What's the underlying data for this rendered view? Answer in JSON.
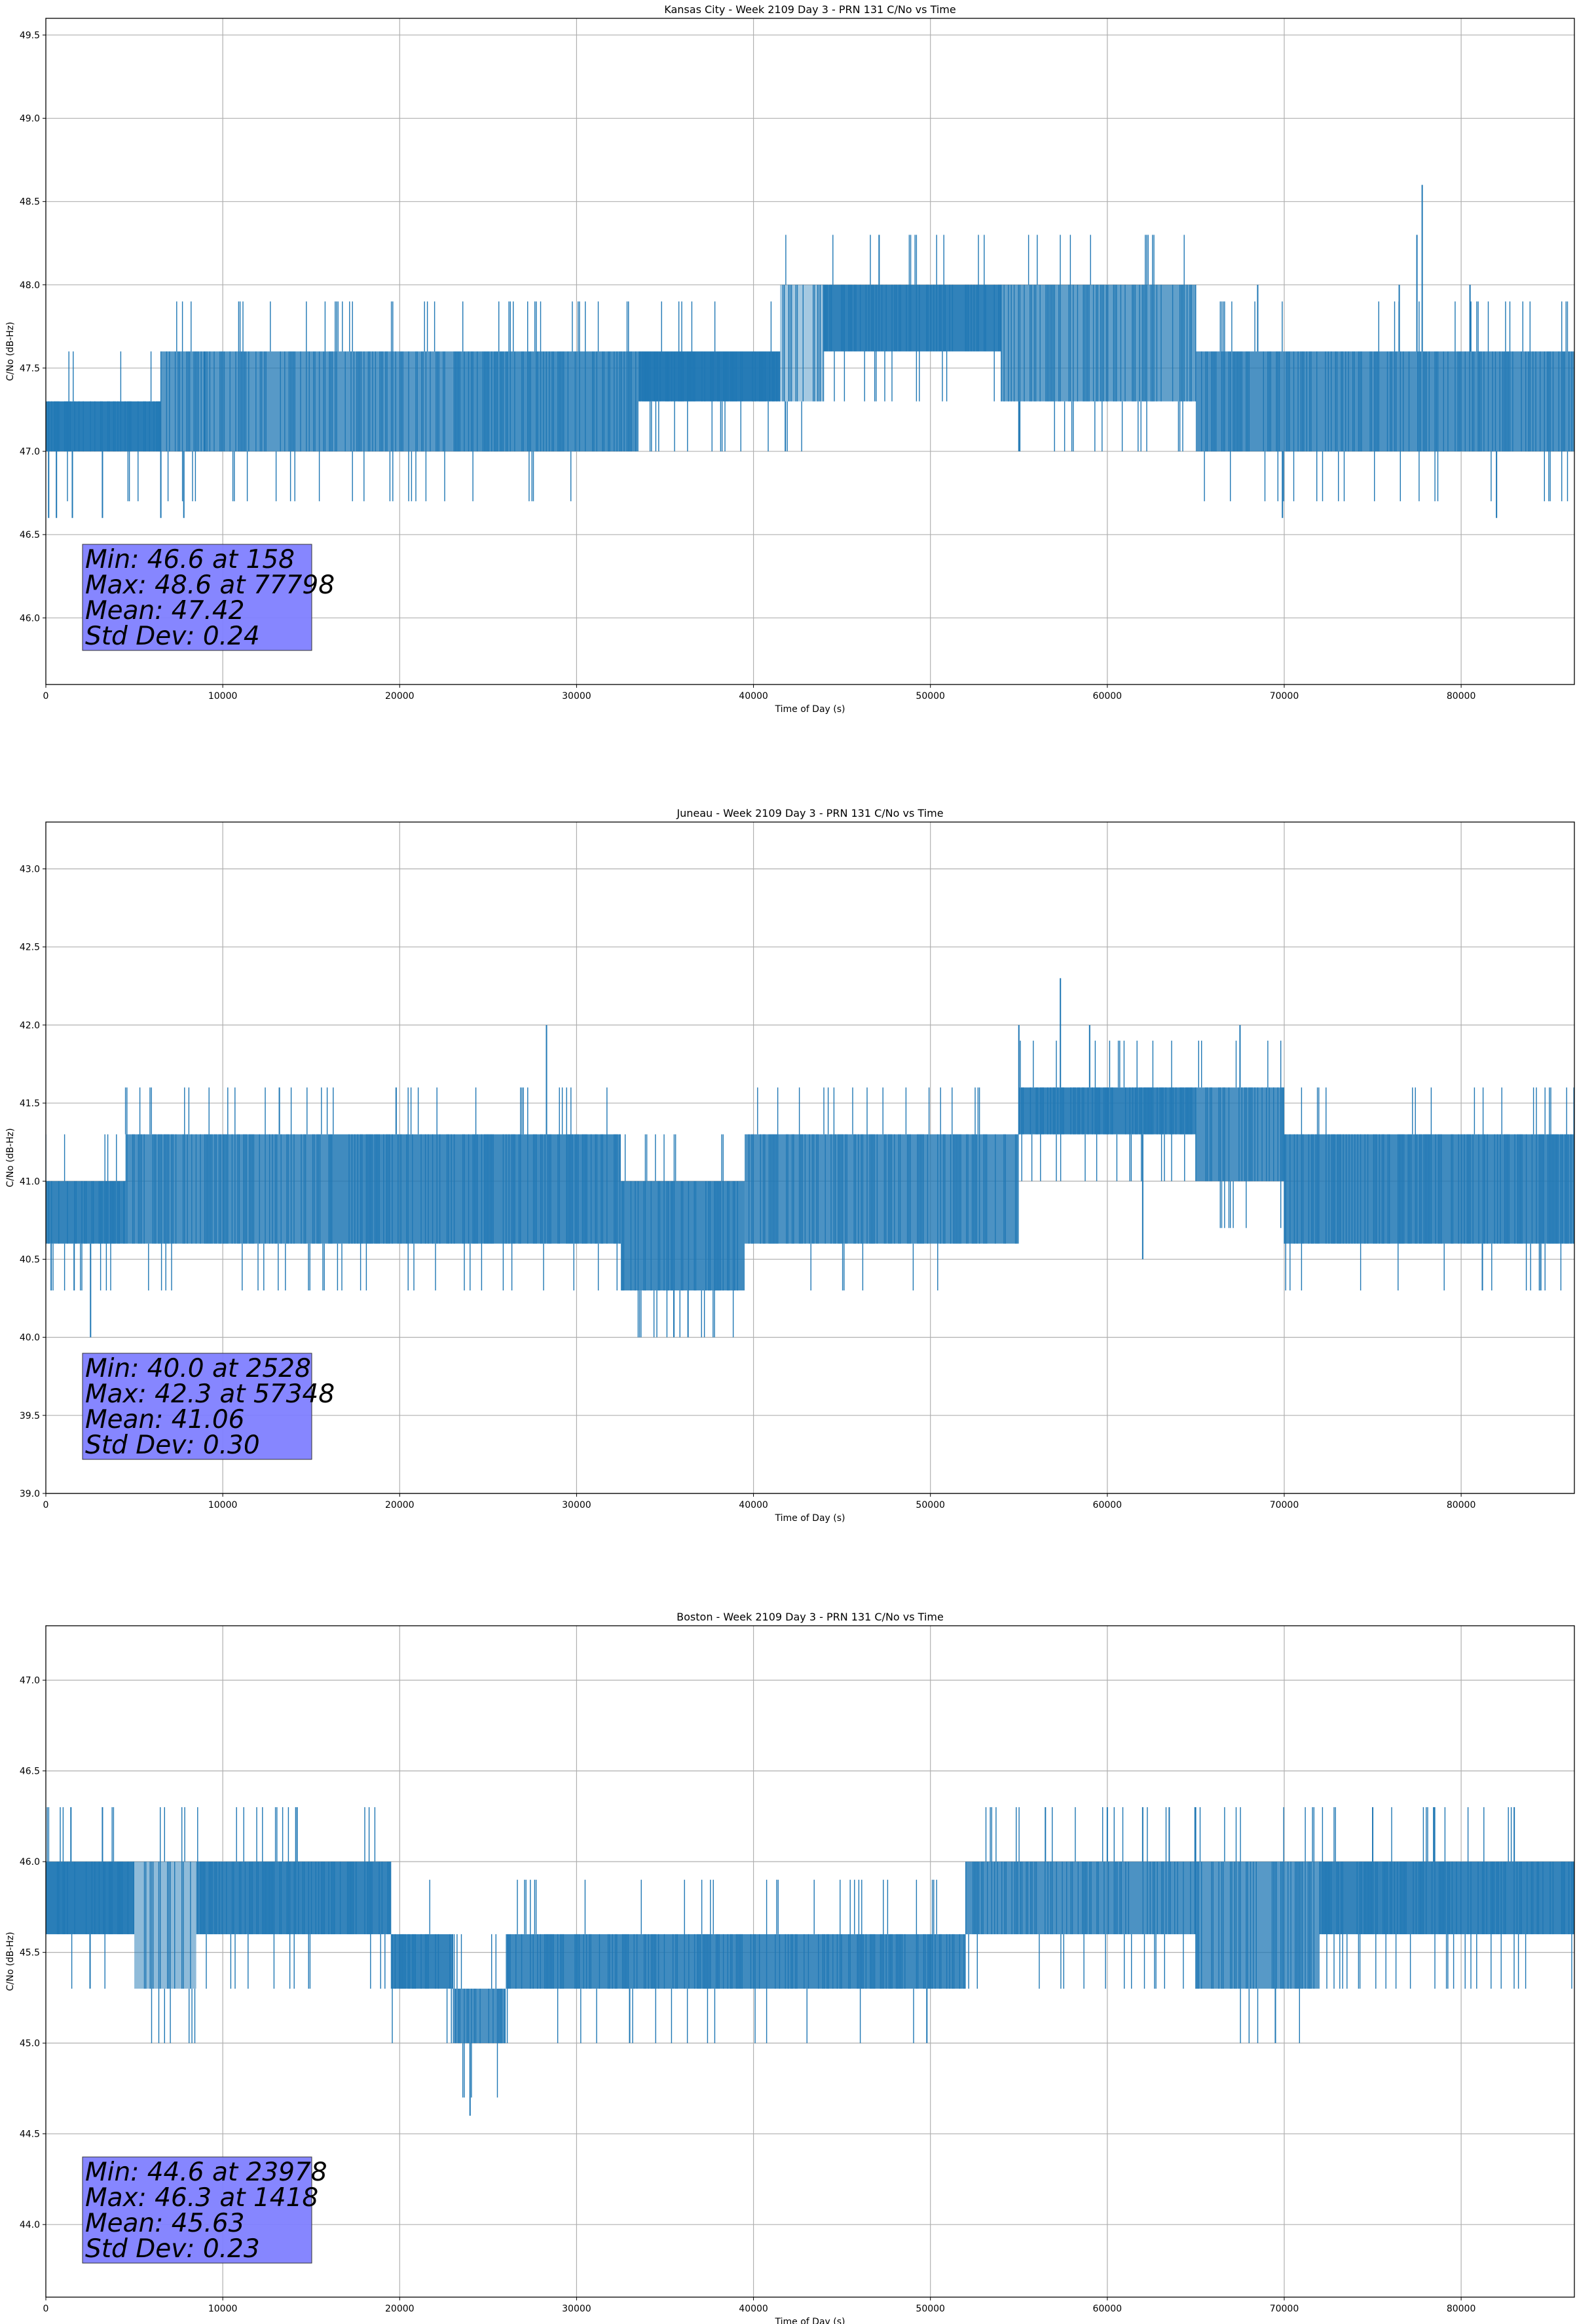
{
  "chart_data": [
    {
      "type": "line",
      "title": "Kansas City - Week 2109 Day 3 - PRN 131 C/No vs Time",
      "xlabel": "Time of Day (s)",
      "ylabel": "C/No (dB-Hz)",
      "xlim": [
        0,
        86400
      ],
      "ylim": [
        45.6,
        49.6
      ],
      "xticks": [
        0,
        10000,
        20000,
        30000,
        40000,
        50000,
        60000,
        70000,
        80000
      ],
      "yticks": [
        46.0,
        46.5,
        47.0,
        47.5,
        48.0,
        48.5,
        49.0,
        49.5
      ],
      "grid": true,
      "series_color": "#1f77b4",
      "series": [
        {
          "segments": [
            {
              "x": [
                0,
                6500
              ],
              "lo": 47.0,
              "hi": 47.3,
              "dense": 0.95
            },
            {
              "x": [
                6500,
                23000
              ],
              "lo": 47.0,
              "hi": 47.6,
              "dense": 0.75
            },
            {
              "x": [
                23000,
                33500
              ],
              "lo": 47.0,
              "hi": 47.6,
              "dense": 0.82
            },
            {
              "x": [
                33500,
                41500
              ],
              "lo": 47.3,
              "hi": 47.6,
              "dense": 0.97
            },
            {
              "x": [
                41500,
                44000
              ],
              "lo": 47.3,
              "hi": 48.0,
              "dense": 0.4
            },
            {
              "x": [
                44000,
                54000
              ],
              "lo": 47.6,
              "hi": 48.0,
              "dense": 0.92
            },
            {
              "x": [
                54000,
                65000
              ],
              "lo": 47.3,
              "hi": 48.0,
              "dense": 0.7
            },
            {
              "x": [
                65000,
                86400
              ],
              "lo": 47.0,
              "hi": 47.6,
              "dense": 0.8
            }
          ],
          "spikes": [
            [
              158,
              46.6
            ],
            [
              600,
              46.6
            ],
            [
              1500,
              46.6
            ],
            [
              3200,
              46.6
            ],
            [
              6500,
              46.6
            ],
            [
              7800,
              46.6
            ],
            [
              9000,
              47.6
            ],
            [
              47100,
              48.3
            ],
            [
              55000,
              47.0
            ],
            [
              41800,
              47.0
            ],
            [
              69900,
              46.6
            ],
            [
              82000,
              46.6
            ],
            [
              77500,
              48.3
            ],
            [
              77798,
              48.6
            ],
            [
              80500,
              48.0
            ],
            [
              76500,
              48.0
            ],
            [
              68500,
              48.0
            ]
          ]
        }
      ],
      "annotation": {
        "lines": [
          "Min: 46.6 at 158",
          "Max: 48.6 at 77798",
          "Mean: 47.42",
          "Std Dev: 0.24"
        ],
        "box_color": "#8080ff"
      }
    },
    {
      "type": "line",
      "title": "Juneau - Week 2109 Day 3 - PRN 131 C/No vs Time",
      "xlabel": "Time of Day (s)",
      "ylabel": "C/No (dB-Hz)",
      "xlim": [
        0,
        86400
      ],
      "ylim": [
        39.0,
        43.3
      ],
      "xticks": [
        0,
        10000,
        20000,
        30000,
        40000,
        50000,
        60000,
        70000,
        80000
      ],
      "yticks": [
        39.0,
        39.5,
        40.0,
        40.5,
        41.0,
        41.5,
        42.0,
        42.5,
        43.0
      ],
      "grid": true,
      "series_color": "#1f77b4",
      "series": [
        {
          "segments": [
            {
              "x": [
                0,
                4500
              ],
              "lo": 40.6,
              "hi": 41.0,
              "dense": 0.9
            },
            {
              "x": [
                4500,
                16000
              ],
              "lo": 40.6,
              "hi": 41.3,
              "dense": 0.8
            },
            {
              "x": [
                16000,
                32500
              ],
              "lo": 40.6,
              "hi": 41.3,
              "dense": 0.85
            },
            {
              "x": [
                32500,
                39500
              ],
              "lo": 40.3,
              "hi": 41.0,
              "dense": 0.85
            },
            {
              "x": [
                39500,
                55000
              ],
              "lo": 40.6,
              "hi": 41.3,
              "dense": 0.8
            },
            {
              "x": [
                55000,
                65000
              ],
              "lo": 41.3,
              "hi": 41.6,
              "dense": 0.9
            },
            {
              "x": [
                65000,
                70000
              ],
              "lo": 41.0,
              "hi": 41.6,
              "dense": 0.8
            },
            {
              "x": [
                70000,
                86400
              ],
              "lo": 40.6,
              "hi": 41.3,
              "dense": 0.85
            }
          ],
          "spikes": [
            [
              300,
              40.3
            ],
            [
              1600,
              40.3
            ],
            [
              2528,
              40.0
            ],
            [
              13200,
              41.6
            ],
            [
              19800,
              41.6
            ],
            [
              28300,
              42.0
            ],
            [
              35500,
              40.0
            ],
            [
              36300,
              40.0
            ],
            [
              55000,
              42.0
            ],
            [
              57348,
              42.3
            ],
            [
              59000,
              42.0
            ],
            [
              67500,
              42.0
            ],
            [
              84500,
              40.3
            ],
            [
              62000,
              40.5
            ],
            [
              81200,
              40.3
            ]
          ]
        }
      ],
      "annotation": {
        "lines": [
          "Min: 40.0 at 2528",
          "Max: 42.3 at 57348",
          "Mean: 41.06",
          "Std Dev: 0.30"
        ],
        "box_color": "#8080ff"
      }
    },
    {
      "type": "line",
      "title": "Boston - Week 2109 Day 3 - PRN 131 C/No vs Time",
      "xlabel": "Time of Day (s)",
      "ylabel": "C/No (dB-Hz)",
      "xlim": [
        0,
        86400
      ],
      "ylim": [
        43.6,
        47.3
      ],
      "xticks": [
        0,
        10000,
        20000,
        30000,
        40000,
        50000,
        60000,
        70000,
        80000
      ],
      "yticks": [
        44.0,
        44.5,
        45.0,
        45.5,
        46.0,
        46.5,
        47.0
      ],
      "grid": true,
      "series_color": "#1f77b4",
      "series": [
        {
          "segments": [
            {
              "x": [
                0,
                5000
              ],
              "lo": 45.6,
              "hi": 46.0,
              "dense": 0.95
            },
            {
              "x": [
                5000,
                8500
              ],
              "lo": 45.3,
              "hi": 46.0,
              "dense": 0.5
            },
            {
              "x": [
                8500,
                19500
              ],
              "lo": 45.6,
              "hi": 46.0,
              "dense": 0.9
            },
            {
              "x": [
                19500,
                23000
              ],
              "lo": 45.3,
              "hi": 45.6,
              "dense": 0.9
            },
            {
              "x": [
                23000,
                26000
              ],
              "lo": 45.0,
              "hi": 45.3,
              "dense": 0.8
            },
            {
              "x": [
                26000,
                52000
              ],
              "lo": 45.3,
              "hi": 45.6,
              "dense": 0.85
            },
            {
              "x": [
                52000,
                65000
              ],
              "lo": 45.6,
              "hi": 46.0,
              "dense": 0.8
            },
            {
              "x": [
                65000,
                72000
              ],
              "lo": 45.3,
              "hi": 46.0,
              "dense": 0.75
            },
            {
              "x": [
                72000,
                86400
              ],
              "lo": 45.6,
              "hi": 46.0,
              "dense": 0.9
            }
          ],
          "spikes": [
            [
              1418,
              46.3
            ],
            [
              3200,
              46.3
            ],
            [
              14200,
              46.3
            ],
            [
              23978,
              44.6
            ],
            [
              33000,
              45.0
            ],
            [
              49800,
              45.0
            ],
            [
              56500,
              46.3
            ],
            [
              60000,
              46.3
            ],
            [
              62000,
              46.3
            ],
            [
              63500,
              46.3
            ],
            [
              69500,
              45.0
            ],
            [
              75000,
              46.3
            ],
            [
              78500,
              46.3
            ],
            [
              83000,
              46.3
            ],
            [
              2500,
              45.3
            ]
          ]
        }
      ],
      "annotation": {
        "lines": [
          "Min: 44.6 at 23978",
          "Max: 46.3 at 1418",
          "Mean: 45.63",
          "Std Dev: 0.23"
        ],
        "box_color": "#8080ff"
      }
    }
  ]
}
